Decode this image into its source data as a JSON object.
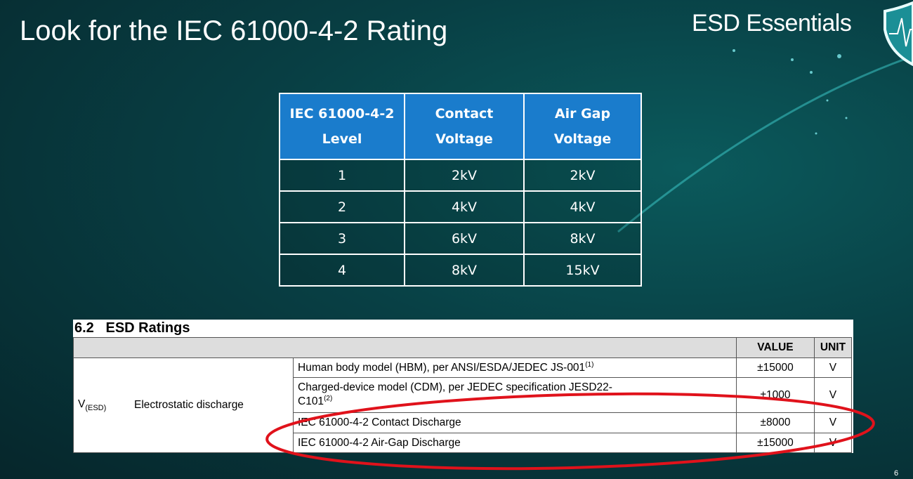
{
  "slide": {
    "title": "Look for the IEC 61000-4-2 Rating",
    "brand": "ESD Essentials",
    "page_number": "6"
  },
  "level_table": {
    "headers": [
      [
        "IEC 61000-4-2",
        "Level"
      ],
      [
        "Contact",
        "Voltage"
      ],
      [
        "Air Gap",
        "Voltage"
      ]
    ],
    "rows": [
      [
        "1",
        "2kV",
        "2kV"
      ],
      [
        "2",
        "4kV",
        "4kV"
      ],
      [
        "3",
        "6kV",
        "8kV"
      ],
      [
        "4",
        "8kV",
        "15kV"
      ]
    ]
  },
  "datasheet": {
    "section_title": "6.2   ESD Ratings",
    "headers": {
      "value": "VALUE",
      "unit": "UNIT"
    },
    "symbol": "V",
    "symbol_sub": "(ESD)",
    "parameter": "Electrostatic discharge",
    "rows": [
      {
        "condition": "Human body model (HBM), per ANSI/ESDA/JEDEC JS-001",
        "note": "(1)",
        "value": "±15000",
        "unit": "V"
      },
      {
        "condition": "Charged-device model (CDM), per JEDEC specification JESD22-",
        "condition2": "C101",
        "note": "(2)",
        "value": "±1000",
        "unit": "V"
      },
      {
        "condition": "IEC 61000-4-2 Contact Discharge",
        "value": "±8000",
        "unit": "V"
      },
      {
        "condition": "IEC 61000-4-2 Air-Gap Discharge",
        "value": "±15000",
        "unit": "V"
      }
    ]
  },
  "colors": {
    "header_blue": "#1a7ccc",
    "highlight_ring": "#e0121b"
  }
}
